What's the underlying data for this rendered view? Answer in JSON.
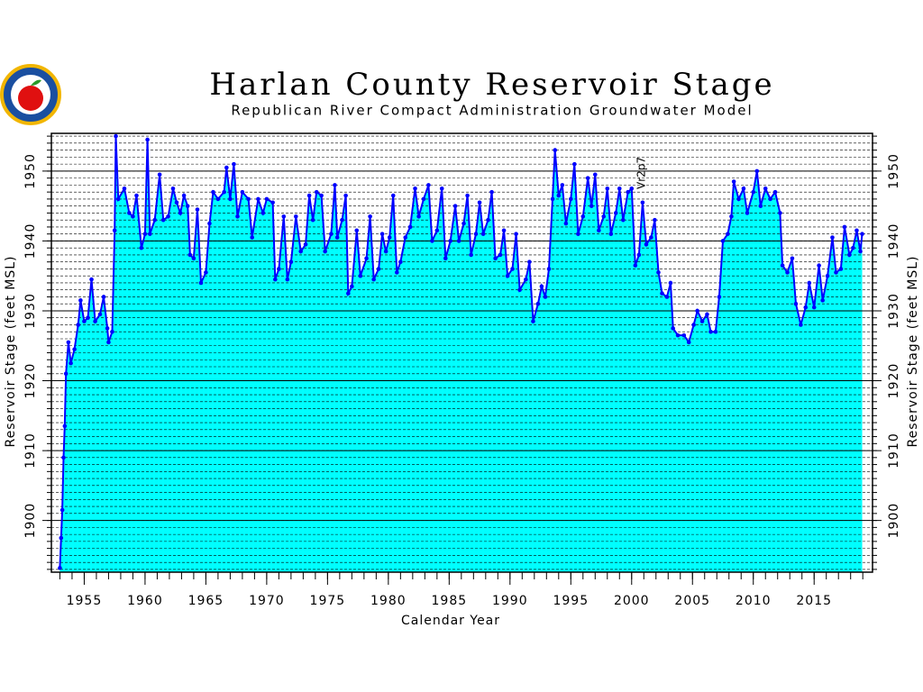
{
  "chart_data": {
    "type": "area",
    "title": "Harlan County Reservoir Stage",
    "subtitle": "Republican River Compact Administration Groundwater Model",
    "annotation": "Vr2p7",
    "x_label": "Calendar Year",
    "y_label": "Reservoir Stage (feet MSL)",
    "xlim": [
      1952.3,
      2019.8
    ],
    "ylim": [
      1892.6,
      1955.4
    ],
    "xticks": [
      1955,
      1960,
      1965,
      1970,
      1975,
      1980,
      1985,
      1990,
      1995,
      2000,
      2005,
      2010,
      2015
    ],
    "yticks": [
      1900,
      1910,
      1920,
      1930,
      1940,
      1950
    ],
    "xminor_step": 1,
    "yminor_step": 1,
    "grid": true,
    "fill_color": "#00ffff",
    "series": [
      {
        "name": "Reservoir Stage",
        "color": "#0000ff",
        "x": [
          1953.0,
          1953.1,
          1953.2,
          1953.3,
          1953.4,
          1953.5,
          1953.7,
          1953.9,
          1954.2,
          1954.5,
          1954.7,
          1955.0,
          1955.3,
          1955.6,
          1955.9,
          1956.3,
          1956.6,
          1956.9,
          1957.0,
          1957.3,
          1957.5,
          1957.6,
          1957.8,
          1958.3,
          1958.7,
          1959.0,
          1959.3,
          1959.7,
          1960.0,
          1960.2,
          1960.4,
          1960.8,
          1961.2,
          1961.5,
          1961.9,
          1962.3,
          1962.6,
          1962.9,
          1963.2,
          1963.5,
          1963.7,
          1964.0,
          1964.3,
          1964.6,
          1965.0,
          1965.3,
          1965.6,
          1966.0,
          1966.5,
          1966.7,
          1967.0,
          1967.3,
          1967.6,
          1968.0,
          1968.5,
          1968.8,
          1969.3,
          1969.7,
          1970.0,
          1970.5,
          1970.7,
          1971.0,
          1971.4,
          1971.7,
          1972.0,
          1972.4,
          1972.8,
          1973.2,
          1973.5,
          1973.8,
          1974.1,
          1974.5,
          1974.8,
          1975.3,
          1975.6,
          1975.8,
          1976.2,
          1976.5,
          1976.7,
          1977.0,
          1977.4,
          1977.7,
          1978.2,
          1978.5,
          1978.8,
          1979.2,
          1979.5,
          1979.8,
          1980.1,
          1980.4,
          1980.7,
          1981.0,
          1981.4,
          1981.8,
          1982.2,
          1982.5,
          1982.9,
          1983.3,
          1983.6,
          1984.0,
          1984.4,
          1984.7,
          1985.1,
          1985.5,
          1985.8,
          1986.2,
          1986.5,
          1986.8,
          1987.2,
          1987.5,
          1987.8,
          1988.2,
          1988.5,
          1988.8,
          1989.2,
          1989.5,
          1989.8,
          1990.2,
          1990.5,
          1990.8,
          1991.3,
          1991.6,
          1991.9,
          1992.3,
          1992.6,
          1992.9,
          1993.2,
          1993.5,
          1993.7,
          1994.0,
          1994.3,
          1994.6,
          1995.0,
          1995.3,
          1995.6,
          1996.0,
          1996.4,
          1996.7,
          1997.0,
          1997.3,
          1997.7,
          1998.0,
          1998.3,
          1998.7,
          1999.0,
          1999.3,
          1999.7,
          2000.0,
          2000.3,
          2000.6,
          2000.9,
          2001.2,
          2001.6,
          2001.9,
          2002.2,
          2002.5,
          2002.9,
          2003.2,
          2003.4,
          2003.8,
          2004.3,
          2004.7,
          2005.1,
          2005.4,
          2005.8,
          2006.2,
          2006.5,
          2006.9,
          2007.2,
          2007.5,
          2007.9,
          2008.2,
          2008.4,
          2008.8,
          2009.2,
          2009.5,
          2010.0,
          2010.3,
          2010.6,
          2011.0,
          2011.4,
          2011.8,
          2012.2,
          2012.4,
          2012.8,
          2013.2,
          2013.5,
          2013.9,
          2014.3,
          2014.6,
          2015.0,
          2015.4,
          2015.7,
          2016.1,
          2016.5,
          2016.8,
          2017.2,
          2017.5,
          2017.9,
          2018.2,
          2018.5,
          2018.8,
          2018.95
        ],
        "values": [
          1893.2,
          1897.5,
          1901.5,
          1909,
          1913.5,
          1921,
          1925.5,
          1922.5,
          1924.5,
          1928,
          1931.5,
          1928.5,
          1929,
          1934.5,
          1928.5,
          1929.5,
          1932,
          1927.5,
          1925.5,
          1927,
          1941.5,
          1955,
          1946,
          1947.5,
          1944,
          1943.5,
          1946.5,
          1939,
          1941,
          1954.5,
          1941,
          1943,
          1949.5,
          1943,
          1943.5,
          1947.5,
          1945.5,
          1944,
          1946.5,
          1945,
          1938,
          1937.5,
          1944.5,
          1934,
          1935.5,
          1942.5,
          1947,
          1946,
          1947,
          1950.5,
          1946,
          1951,
          1943.5,
          1947,
          1946,
          1940.5,
          1946,
          1944,
          1946,
          1945.5,
          1934.5,
          1936,
          1943.5,
          1934.5,
          1937,
          1943.5,
          1938.5,
          1939.5,
          1946.5,
          1943,
          1947,
          1946.5,
          1938.5,
          1941,
          1948,
          1940.5,
          1943,
          1946.5,
          1932.5,
          1933.5,
          1941.5,
          1935,
          1937.5,
          1943.5,
          1934.5,
          1936,
          1941,
          1938.5,
          1940.5,
          1946.5,
          1935.5,
          1937,
          1940.5,
          1942,
          1947.5,
          1943.5,
          1946,
          1948,
          1940,
          1941.5,
          1947.5,
          1937.5,
          1940,
          1945,
          1940,
          1942.5,
          1946.5,
          1938,
          1941,
          1945.5,
          1941,
          1943,
          1947,
          1937.5,
          1938,
          1941.5,
          1935,
          1936,
          1941,
          1933,
          1934.5,
          1937,
          1928.5,
          1931,
          1933.5,
          1932,
          1936,
          1946,
          1953,
          1946.5,
          1948,
          1942.5,
          1946,
          1951,
          1941,
          1943.5,
          1949,
          1945,
          1949.5,
          1941.5,
          1943.5,
          1947.5,
          1941,
          1944,
          1947.5,
          1943,
          1947,
          1947.5,
          1936.5,
          1938,
          1945.5,
          1939.5,
          1940.5,
          1943,
          1935.5,
          1932.5,
          1932,
          1934,
          1927.5,
          1926.5,
          1926.5,
          1925.5,
          1928,
          1930,
          1928.5,
          1929.5,
          1927,
          1927,
          1932,
          1940,
          1941,
          1943.5,
          1948.5,
          1946,
          1947.5,
          1944,
          1947,
          1950,
          1945,
          1947.5,
          1946,
          1947,
          1944,
          1936.5,
          1935.5,
          1937.5,
          1931,
          1928,
          1930.5,
          1934,
          1930.5,
          1936.5,
          1931.5,
          1935,
          1940.5,
          1935.5,
          1936,
          1942,
          1938,
          1939,
          1941.5,
          1938.5,
          1941
        ]
      }
    ]
  }
}
